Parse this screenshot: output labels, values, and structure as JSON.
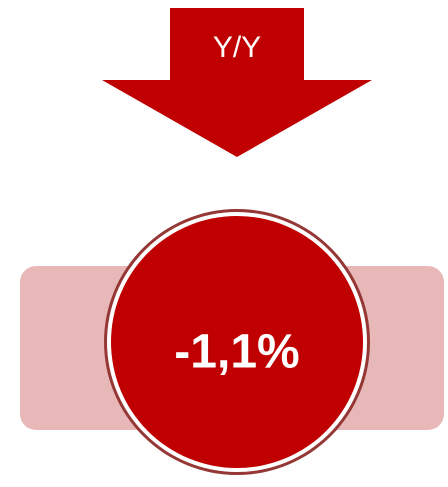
{
  "label": "Y/Y",
  "value_text": "-1,1%"
}
